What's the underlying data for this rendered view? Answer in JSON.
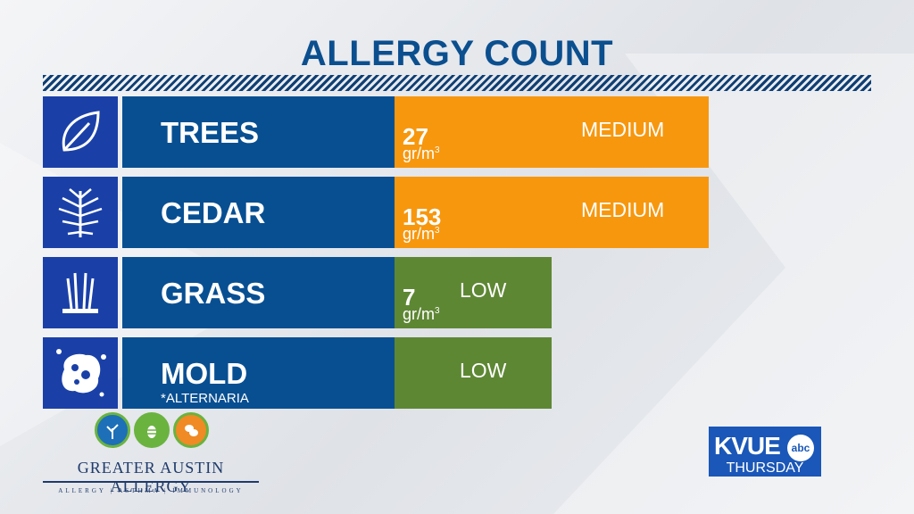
{
  "title": "ALLERGY COUNT",
  "colors": {
    "title": "#0b4f8f",
    "icon_bg": "#1a40a8",
    "label_bg": "#084f92",
    "medium": "#f7970e",
    "low": "#5e8734",
    "hatch": "#0f3f74"
  },
  "rows": [
    {
      "label": "TREES",
      "sublabel": "",
      "count": "27",
      "unit": "gr/m",
      "unit_sup": "3",
      "level": "MEDIUM",
      "icon": "leaf-icon"
    },
    {
      "label": "CEDAR",
      "sublabel": "",
      "count": "153",
      "unit": "gr/m",
      "unit_sup": "3",
      "level": "MEDIUM",
      "icon": "cedar-branch-icon"
    },
    {
      "label": "GRASS",
      "sublabel": "",
      "count": "7",
      "unit": "gr/m",
      "unit_sup": "3",
      "level": "LOW",
      "icon": "grass-icon"
    },
    {
      "label": "MOLD",
      "sublabel": "*ALTERNARIA",
      "count": "",
      "unit": "",
      "unit_sup": "",
      "level": "LOW",
      "icon": "mold-spore-icon"
    }
  ],
  "sponsor": {
    "name": "GREATER AUSTIN ALLERGY",
    "tagline": "ALLERGY | ASTHMA | IMMUNOLOGY",
    "icons": [
      "tree-logo-icon",
      "bee-logo-icon",
      "peanut-logo-icon"
    ]
  },
  "station": {
    "name": "KVUE",
    "network": "abc",
    "day": "THURSDAY"
  }
}
